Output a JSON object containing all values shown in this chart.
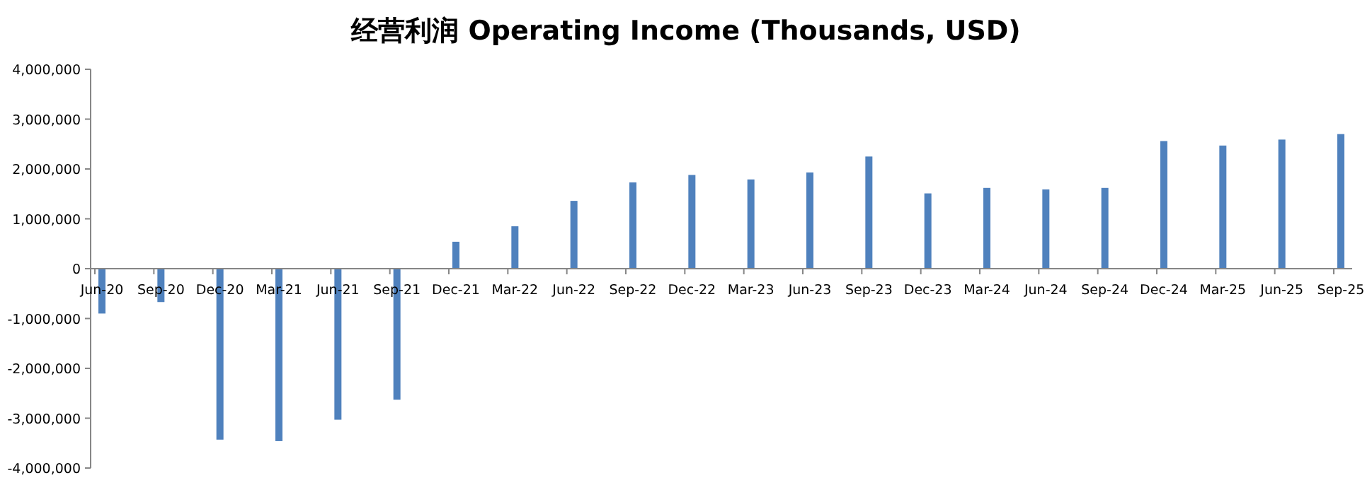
{
  "chart_data": {
    "type": "bar",
    "title": "经营利润 Operating Income (Thousands, USD)",
    "categories": [
      "Jun-20",
      "Sep-20",
      "Dec-20",
      "Mar-21",
      "Jun-21",
      "Sep-21",
      "Dec-21",
      "Mar-22",
      "Jun-22",
      "Sep-22",
      "Dec-22",
      "Mar-23",
      "Jun-23",
      "Sep-23",
      "Dec-23",
      "Mar-24",
      "Jun-24",
      "Sep-24",
      "Dec-24",
      "Mar-25",
      "Jun-25",
      "Sep-25"
    ],
    "values": [
      -900000,
      -670000,
      -3430000,
      -3460000,
      -3030000,
      -2630000,
      540000,
      850000,
      1360000,
      1730000,
      1880000,
      1790000,
      1930000,
      2250000,
      1510000,
      1620000,
      1590000,
      1620000,
      2560000,
      2470000,
      2590000,
      2700000
    ],
    "color": "#4f81bd",
    "ylim": [
      -4000000,
      4000000
    ],
    "yticks": [
      {
        "value": -4000000,
        "label": "-4,000,000"
      },
      {
        "value": -3000000,
        "label": "-3,000,000"
      },
      {
        "value": -2000000,
        "label": "-2,000,000"
      },
      {
        "value": -1000000,
        "label": "-1,000,000"
      },
      0,
      {
        "value": 1000000,
        "label": "1,000,000"
      },
      {
        "value": 2000000,
        "label": "2,000,000"
      },
      {
        "value": 3000000,
        "label": "3,000,000"
      },
      {
        "value": 4000000,
        "label": "4,000,000"
      }
    ],
    "grid": false
  }
}
